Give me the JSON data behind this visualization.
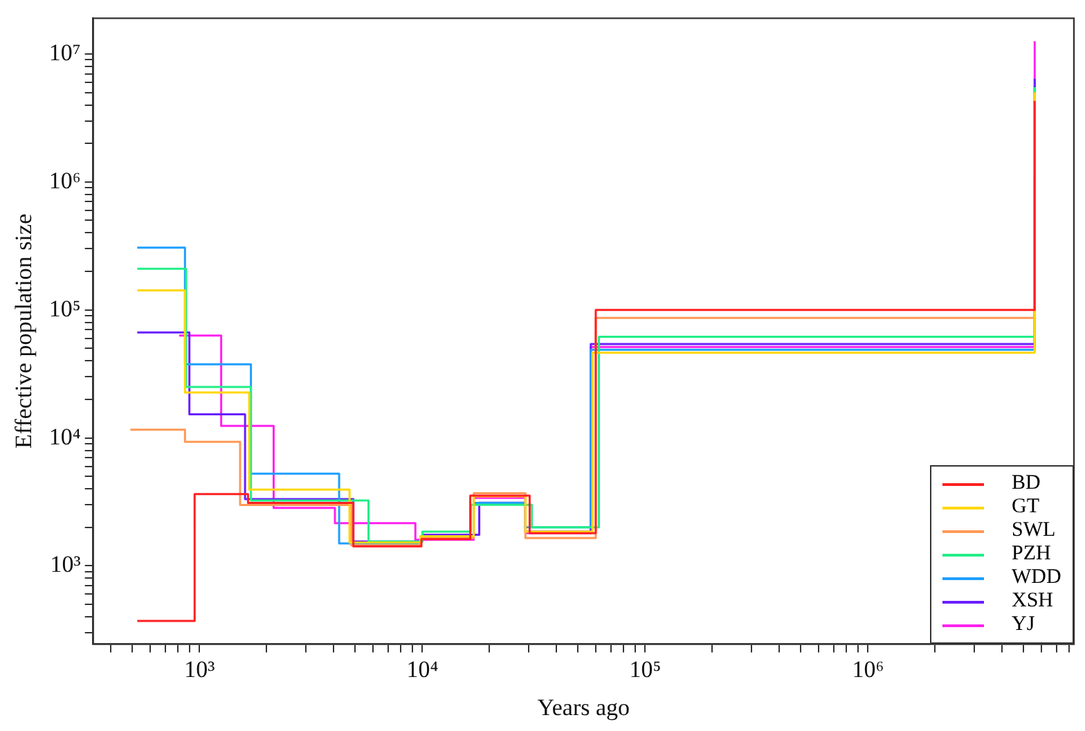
{
  "chart_data": {
    "type": "step",
    "xlabel": "Years ago",
    "ylabel": "Effective population size",
    "log": "xy",
    "grid": false,
    "legend": "bottom right",
    "marker": "none",
    "line_style": "solid",
    "xlim": [
      333,
      8400000
    ],
    "ylim": [
      245,
      19000000
    ],
    "xticks": [
      {
        "value": 400,
        "label": null
      },
      {
        "value": 500,
        "label": null
      },
      {
        "value": 600,
        "label": null
      },
      {
        "value": 700,
        "label": null
      },
      {
        "value": 800,
        "label": null
      },
      {
        "value": 900,
        "label": null
      },
      {
        "value": 1000,
        "label": "10³"
      },
      {
        "value": 2000,
        "label": null
      },
      {
        "value": 3000,
        "label": null
      },
      {
        "value": 4000,
        "label": null
      },
      {
        "value": 5000,
        "label": null
      },
      {
        "value": 6000,
        "label": null
      },
      {
        "value": 7000,
        "label": null
      },
      {
        "value": 8000,
        "label": null
      },
      {
        "value": 9000,
        "label": null
      },
      {
        "value": 10000,
        "label": "10⁴"
      },
      {
        "value": 20000,
        "label": null
      },
      {
        "value": 30000,
        "label": null
      },
      {
        "value": 40000,
        "label": null
      },
      {
        "value": 50000,
        "label": null
      },
      {
        "value": 60000,
        "label": null
      },
      {
        "value": 70000,
        "label": null
      },
      {
        "value": 80000,
        "label": null
      },
      {
        "value": 90000,
        "label": null
      },
      {
        "value": 100000,
        "label": "10⁵"
      },
      {
        "value": 200000,
        "label": null
      },
      {
        "value": 300000,
        "label": null
      },
      {
        "value": 400000,
        "label": null
      },
      {
        "value": 500000,
        "label": null
      },
      {
        "value": 600000,
        "label": null
      },
      {
        "value": 700000,
        "label": null
      },
      {
        "value": 800000,
        "label": null
      },
      {
        "value": 900000,
        "label": null
      },
      {
        "value": 1000000,
        "label": "10⁶"
      },
      {
        "value": 2000000,
        "label": null
      },
      {
        "value": 3000000,
        "label": null
      },
      {
        "value": 4000000,
        "label": null
      },
      {
        "value": 5000000,
        "label": null
      },
      {
        "value": 6000000,
        "label": null
      },
      {
        "value": 7000000,
        "label": null
      },
      {
        "value": 8000000,
        "label": null
      }
    ],
    "yticks": [
      {
        "value": 300,
        "label": null
      },
      {
        "value": 400,
        "label": null
      },
      {
        "value": 500,
        "label": null
      },
      {
        "value": 600,
        "label": null
      },
      {
        "value": 700,
        "label": null
      },
      {
        "value": 800,
        "label": null
      },
      {
        "value": 900,
        "label": null
      },
      {
        "value": 1000,
        "label": "10³"
      },
      {
        "value": 2000,
        "label": null
      },
      {
        "value": 3000,
        "label": null
      },
      {
        "value": 4000,
        "label": null
      },
      {
        "value": 5000,
        "label": null
      },
      {
        "value": 6000,
        "label": null
      },
      {
        "value": 7000,
        "label": null
      },
      {
        "value": 8000,
        "label": null
      },
      {
        "value": 9000,
        "label": null
      },
      {
        "value": 10000,
        "label": "10⁴"
      },
      {
        "value": 20000,
        "label": null
      },
      {
        "value": 30000,
        "label": null
      },
      {
        "value": 40000,
        "label": null
      },
      {
        "value": 50000,
        "label": null
      },
      {
        "value": 60000,
        "label": null
      },
      {
        "value": 70000,
        "label": null
      },
      {
        "value": 80000,
        "label": null
      },
      {
        "value": 90000,
        "label": null
      },
      {
        "value": 100000,
        "label": "10⁵"
      },
      {
        "value": 200000,
        "label": null
      },
      {
        "value": 300000,
        "label": null
      },
      {
        "value": 400000,
        "label": null
      },
      {
        "value": 500000,
        "label": null
      },
      {
        "value": 600000,
        "label": null
      },
      {
        "value": 700000,
        "label": null
      },
      {
        "value": 800000,
        "label": null
      },
      {
        "value": 900000,
        "label": null
      },
      {
        "value": 1000000,
        "label": "10⁶"
      },
      {
        "value": 2000000,
        "label": null
      },
      {
        "value": 3000000,
        "label": null
      },
      {
        "value": 4000000,
        "label": null
      },
      {
        "value": 5000000,
        "label": null
      },
      {
        "value": 6000000,
        "label": null
      },
      {
        "value": 7000000,
        "label": null
      },
      {
        "value": 8000000,
        "label": null
      },
      {
        "value": 9000000,
        "label": null
      },
      {
        "value": 10000000,
        "label": "10⁷"
      }
    ],
    "series": [
      {
        "name": "BD",
        "color": "#ff2020",
        "x": [
          525,
          950,
          1650,
          4900,
          9900,
          16400,
          30300,
          60000,
          5600000
        ],
        "values": [
          371,
          3640,
          3100,
          1420,
          1620,
          3540,
          1800,
          100000,
          4300000
        ]
      },
      {
        "name": "GT",
        "color": "#ffd700",
        "x": [
          525,
          860,
          1670,
          4710,
          9800,
          17000,
          29000,
          58000,
          5600000
        ],
        "values": [
          142000,
          22600,
          3940,
          1520,
          1700,
          3500,
          1850,
          46300,
          5000000
        ]
      },
      {
        "name": "SWL",
        "color": "#ff9955",
        "x": [
          489,
          860,
          1520,
          4800,
          9800,
          17000,
          29000,
          60000,
          5600000
        ],
        "values": [
          11600,
          9310,
          2990,
          1450,
          1650,
          3700,
          1650,
          86700,
          5000000
        ]
      },
      {
        "name": "PZH",
        "color": "#22ee88",
        "x": [
          525,
          870,
          1700,
          5730,
          10000,
          16500,
          31000,
          62000,
          5600000
        ],
        "values": [
          210000,
          25000,
          3240,
          1550,
          1850,
          3000,
          2000,
          61700,
          5500000
        ]
      },
      {
        "name": "WDD",
        "color": "#1e9fff",
        "x": [
          525,
          860,
          1700,
          4230,
          9800,
          17000,
          29000,
          57000,
          5600000
        ],
        "values": [
          307000,
          37600,
          5250,
          1500,
          1700,
          3100,
          2000,
          48800,
          5500000
        ]
      },
      {
        "name": "XSH",
        "color": "#6a1fff",
        "x": [
          525,
          900,
          1600,
          4900,
          10000,
          18000,
          29000,
          57000,
          5600000
        ],
        "values": [
          66700,
          15300,
          3320,
          1550,
          1750,
          3110,
          1850,
          54200,
          6400000
        ]
      },
      {
        "name": "YJ",
        "color": "#ff22ee",
        "x": [
          810,
          1250,
          2150,
          4050,
          9300,
          17000,
          29000,
          57000,
          5600000
        ],
        "values": [
          63000,
          12400,
          2840,
          2160,
          1600,
          3400,
          1800,
          51400,
          12600000
        ]
      }
    ]
  }
}
